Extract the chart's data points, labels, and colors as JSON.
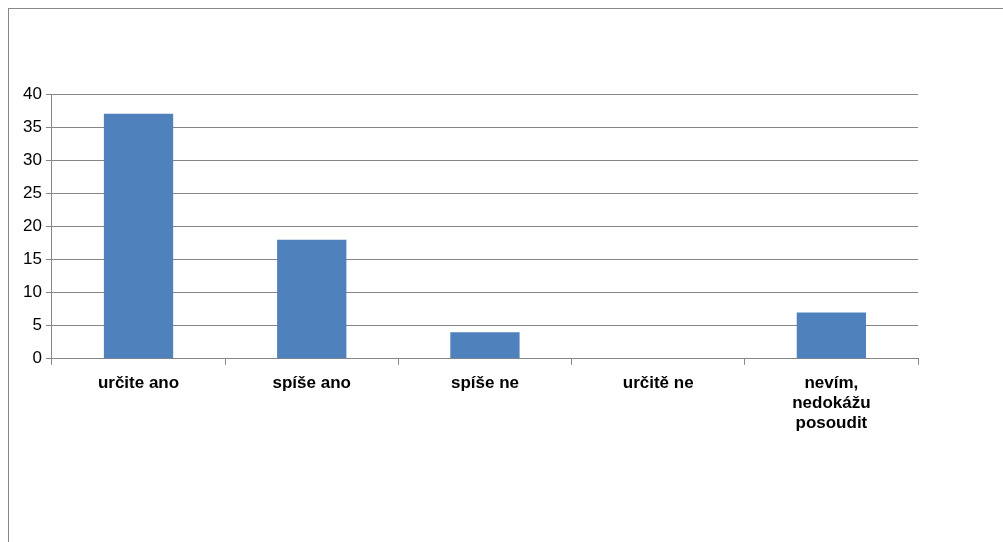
{
  "chart_data": {
    "type": "bar",
    "categories": [
      "určite ano",
      "spíše ano",
      "spíše ne",
      "určitě ne",
      "nevím, nedokážu posoudit"
    ],
    "values": [
      37,
      18,
      4,
      0,
      7
    ],
    "color": "#4f81bd",
    "ylim": [
      0,
      40
    ],
    "yticks": [
      0,
      5,
      10,
      15,
      20,
      25,
      30,
      35,
      40
    ],
    "grid": "y",
    "legend": false
  }
}
